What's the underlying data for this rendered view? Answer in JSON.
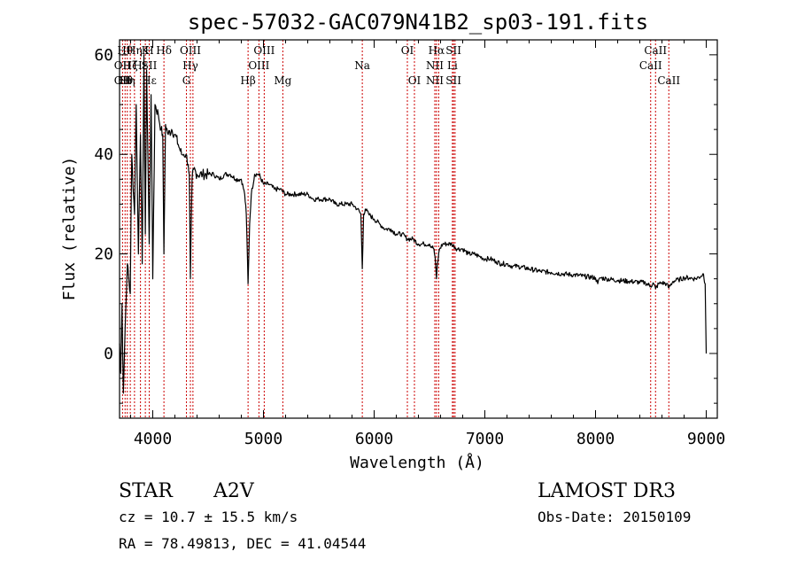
{
  "chart_data": {
    "type": "line",
    "title": "spec-57032-GAC079N41B2_sp03-191.fits",
    "xlabel": "Wavelength (Å)",
    "ylabel": "Flux (relative)",
    "xlim": [
      3700,
      9100
    ],
    "ylim": [
      -13,
      63
    ],
    "xticks": [
      4000,
      5000,
      6000,
      7000,
      8000,
      9000
    ],
    "xtick_labels": [
      "4000",
      "5000",
      "6000",
      "7000",
      "8000",
      "9000"
    ],
    "yticks": [
      0,
      20,
      40,
      60
    ],
    "ytick_labels": [
      "0",
      "20",
      "40",
      "60"
    ],
    "grid": false,
    "series": [
      {
        "x": [
          3700,
          3710,
          3722,
          3734,
          3750,
          3770,
          3797,
          3810,
          3835,
          3850,
          3870,
          3889,
          3905,
          3920,
          3933,
          3945,
          3968,
          3985,
          4000,
          4020,
          4050,
          4075,
          4090,
          4101,
          4115,
          4140,
          4170,
          4200,
          4230,
          4260,
          4280,
          4300,
          4320,
          4330,
          4340,
          4355,
          4370,
          4400,
          4450,
          4500,
          4550,
          4600,
          4650,
          4700,
          4750,
          4800,
          4830,
          4845,
          4861,
          4875,
          4890,
          4920,
          4960,
          5000,
          5050,
          5100,
          5150,
          5200,
          5250,
          5300,
          5350,
          5400,
          5450,
          5500,
          5550,
          5600,
          5650,
          5700,
          5750,
          5800,
          5850,
          5880,
          5893,
          5905,
          5920,
          5950,
          6000,
          6050,
          6100,
          6150,
          6200,
          6250,
          6300,
          6350,
          6400,
          6450,
          6500,
          6540,
          6555,
          6563,
          6572,
          6590,
          6620,
          6660,
          6700,
          6750,
          6800,
          6850,
          6900,
          6950,
          7000,
          7050,
          7100,
          7150,
          7200,
          7250,
          7300,
          7400,
          7500,
          7600,
          7700,
          7800,
          7900,
          8000,
          8020,
          8040,
          8100,
          8200,
          8300,
          8400,
          8450,
          8498,
          8520,
          8542,
          8570,
          8600,
          8640,
          8662,
          8700,
          8750,
          8800,
          8850,
          8900,
          8950,
          8975,
          8990,
          9000
        ],
        "y": [
          2,
          -4,
          10,
          -8,
          5,
          18,
          12,
          40,
          28,
          50,
          20,
          44,
          18,
          60,
          24,
          57,
          22,
          52,
          15,
          50,
          48,
          45,
          44,
          20,
          46,
          44,
          45,
          44,
          42,
          40,
          40,
          40,
          38,
          36,
          15,
          35,
          37,
          36,
          36,
          36,
          36,
          35,
          36,
          36,
          35,
          35,
          32,
          28,
          14,
          26,
          32,
          36,
          36,
          34,
          34,
          33,
          33,
          32,
          32,
          32,
          32,
          32,
          31,
          31,
          31,
          31,
          30,
          30,
          30,
          30,
          29,
          28,
          17,
          28,
          29,
          28,
          27,
          26,
          25,
          25,
          24,
          24,
          23,
          23,
          22,
          22,
          22,
          21,
          18,
          15,
          18,
          21,
          22,
          22,
          22,
          21,
          21,
          20,
          20,
          19.5,
          19,
          19,
          18.5,
          18,
          18,
          17.5,
          17.5,
          17,
          16.5,
          16.3,
          16,
          15.8,
          15.5,
          15.2,
          14,
          15.2,
          15,
          14.7,
          14.5,
          14.3,
          14.2,
          13.5,
          14.2,
          13,
          14,
          14.2,
          14,
          13.2,
          14.5,
          14.8,
          15.2,
          15.2,
          15,
          15.5,
          16,
          14,
          0
        ]
      }
    ],
    "lines": [
      {
        "x": 3727,
        "labels": [
          {
            "t": "OII",
            "row": 1
          },
          {
            "t": "OII",
            "row": 2
          }
        ]
      },
      {
        "x": 3750,
        "labels": [
          {
            "t": "Hθ",
            "row": 0
          },
          {
            "t": "Hθ",
            "row": 2
          }
        ]
      },
      {
        "x": 3770,
        "labels": [
          {
            "t": "Hη",
            "row": 2
          }
        ]
      },
      {
        "x": 3797,
        "labels": [
          {
            "t": "Hζ",
            "row": 1
          }
        ]
      },
      {
        "x": 3835,
        "labels": [
          {
            "t": "Hη",
            "row": 0
          }
        ]
      },
      {
        "x": 3889,
        "labels": [
          {
            "t": "Hε",
            "row": 1
          }
        ]
      },
      {
        "x": 3933,
        "labels": [
          {
            "t": "K",
            "row": 0
          }
        ]
      },
      {
        "x": 3968,
        "labels": [
          {
            "t": "H",
            "row": 0
          },
          {
            "t": "SII",
            "row": 1
          },
          {
            "t": "Hε",
            "row": 2
          }
        ]
      },
      {
        "x": 4101,
        "labels": [
          {
            "t": "Hδ",
            "row": 0
          }
        ]
      },
      {
        "x": 4304,
        "labels": [
          {
            "t": "G",
            "row": 2
          }
        ]
      },
      {
        "x": 4340,
        "labels": [
          {
            "t": "OIII",
            "row": 0
          },
          {
            "t": "Hγ",
            "row": 1
          }
        ]
      },
      {
        "x": 4363,
        "labels": []
      },
      {
        "x": 4861,
        "labels": [
          {
            "t": "Hβ",
            "row": 2
          }
        ]
      },
      {
        "x": 4959,
        "labels": [
          {
            "t": "OIII",
            "row": 1
          }
        ]
      },
      {
        "x": 5007,
        "labels": [
          {
            "t": "OIII",
            "row": 0
          }
        ]
      },
      {
        "x": 5175,
        "labels": [
          {
            "t": "Mg",
            "row": 2
          }
        ]
      },
      {
        "x": 5893,
        "labels": [
          {
            "t": "Na",
            "row": 1
          }
        ]
      },
      {
        "x": 6300,
        "labels": [
          {
            "t": "OI",
            "row": 0
          }
        ]
      },
      {
        "x": 6364,
        "labels": [
          {
            "t": "OI",
            "row": 2
          }
        ]
      },
      {
        "x": 6548,
        "labels": [
          {
            "t": "NII",
            "row": 1
          },
          {
            "t": "NII",
            "row": 2
          }
        ]
      },
      {
        "x": 6563,
        "labels": [
          {
            "t": "Hα",
            "row": 0
          }
        ]
      },
      {
        "x": 6583,
        "labels": []
      },
      {
        "x": 6707,
        "labels": [
          {
            "t": "Li",
            "row": 1
          }
        ]
      },
      {
        "x": 6717,
        "labels": [
          {
            "t": "SII",
            "row": 0
          },
          {
            "t": "SII",
            "row": 2
          }
        ]
      },
      {
        "x": 6731,
        "labels": []
      },
      {
        "x": 8498,
        "labels": [
          {
            "t": "CaII",
            "row": 1
          }
        ]
      },
      {
        "x": 8542,
        "labels": [
          {
            "t": "CaII",
            "row": 0
          }
        ]
      },
      {
        "x": 8662,
        "labels": [
          {
            "t": "CaII",
            "row": 2
          }
        ]
      }
    ]
  },
  "info": {
    "object_class": "STAR",
    "subclass": "A2V",
    "survey": "LAMOST DR3",
    "cz": "cz = 10.7 ± 15.5 km/s",
    "obs_date": "Obs-Date: 20150109",
    "coords": "RA =  78.49813, DEC =  41.04544"
  },
  "colors": {
    "spectrum": "#000000",
    "line_markers": "#cc0000",
    "axes": "#000000",
    "background": "#ffffff"
  }
}
